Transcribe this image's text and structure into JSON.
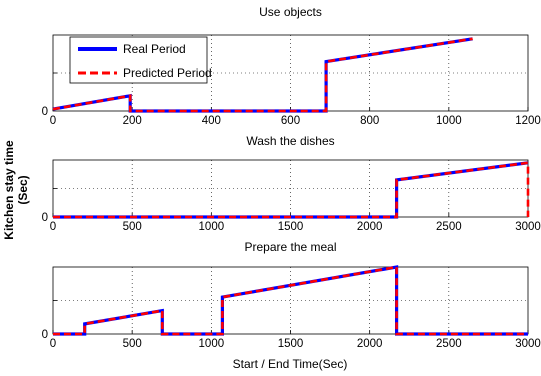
{
  "figure": {
    "ylabel_line1": "Kitchen stay time",
    "ylabel_line2": "(Sec)",
    "xlabel": "Start / End Time(Sec)"
  },
  "legend": {
    "real": "Real Period",
    "predicted": "Predicted Period",
    "real_color": "#0000ff",
    "predicted_color": "#ff0000"
  },
  "chart_data": [
    {
      "type": "line",
      "title": "Use objects",
      "xlim": [
        0,
        1200
      ],
      "ylim": [
        0,
        2
      ],
      "grid": true,
      "legend_position": "top-left",
      "xticks": [
        0,
        200,
        400,
        600,
        800,
        1000,
        1200
      ],
      "yticks": [
        0
      ],
      "series": [
        {
          "name": "Real Period",
          "x": [
            0,
            195,
            195,
            690,
            690,
            1060
          ],
          "y": [
            0.05,
            0.4,
            0,
            0,
            1.3,
            1.9
          ]
        },
        {
          "name": "Predicted Period",
          "x": [
            0,
            195,
            195,
            690,
            690,
            1060
          ],
          "y": [
            0.05,
            0.4,
            0,
            0,
            1.3,
            1.9
          ]
        }
      ]
    },
    {
      "type": "line",
      "title": "Wash the dishes",
      "xlim": [
        0,
        3000
      ],
      "ylim": [
        0,
        2
      ],
      "grid": true,
      "xticks": [
        0,
        500,
        1000,
        1500,
        2000,
        2500,
        3000
      ],
      "yticks": [
        0
      ],
      "series": [
        {
          "name": "Real Period",
          "x": [
            0,
            2170,
            2170,
            3000
          ],
          "y": [
            0,
            0,
            1.3,
            1.9
          ]
        },
        {
          "name": "Predicted Period",
          "x": [
            0,
            2170,
            2170,
            3000,
            3000
          ],
          "y": [
            0,
            0,
            1.3,
            1.9,
            0
          ]
        }
      ]
    },
    {
      "type": "line",
      "title": "Prepare the meal",
      "xlim": [
        0,
        3000
      ],
      "ylim": [
        0,
        2
      ],
      "grid": true,
      "xticks": [
        0,
        500,
        1000,
        1500,
        2000,
        2500,
        3000
      ],
      "yticks": [
        0
      ],
      "series": [
        {
          "name": "Real Period",
          "x": [
            0,
            200,
            200,
            690,
            690,
            1070,
            1070,
            2170,
            2170,
            3000
          ],
          "y": [
            0,
            0,
            0.3,
            0.7,
            0,
            0,
            1.1,
            2.0,
            0,
            0
          ]
        },
        {
          "name": "Predicted Period",
          "x": [
            0,
            200,
            200,
            690,
            690,
            1070,
            1070,
            2170,
            2170,
            3000
          ],
          "y": [
            0,
            0,
            0.3,
            0.7,
            0,
            0,
            1.1,
            2.0,
            0,
            0
          ]
        }
      ]
    }
  ]
}
